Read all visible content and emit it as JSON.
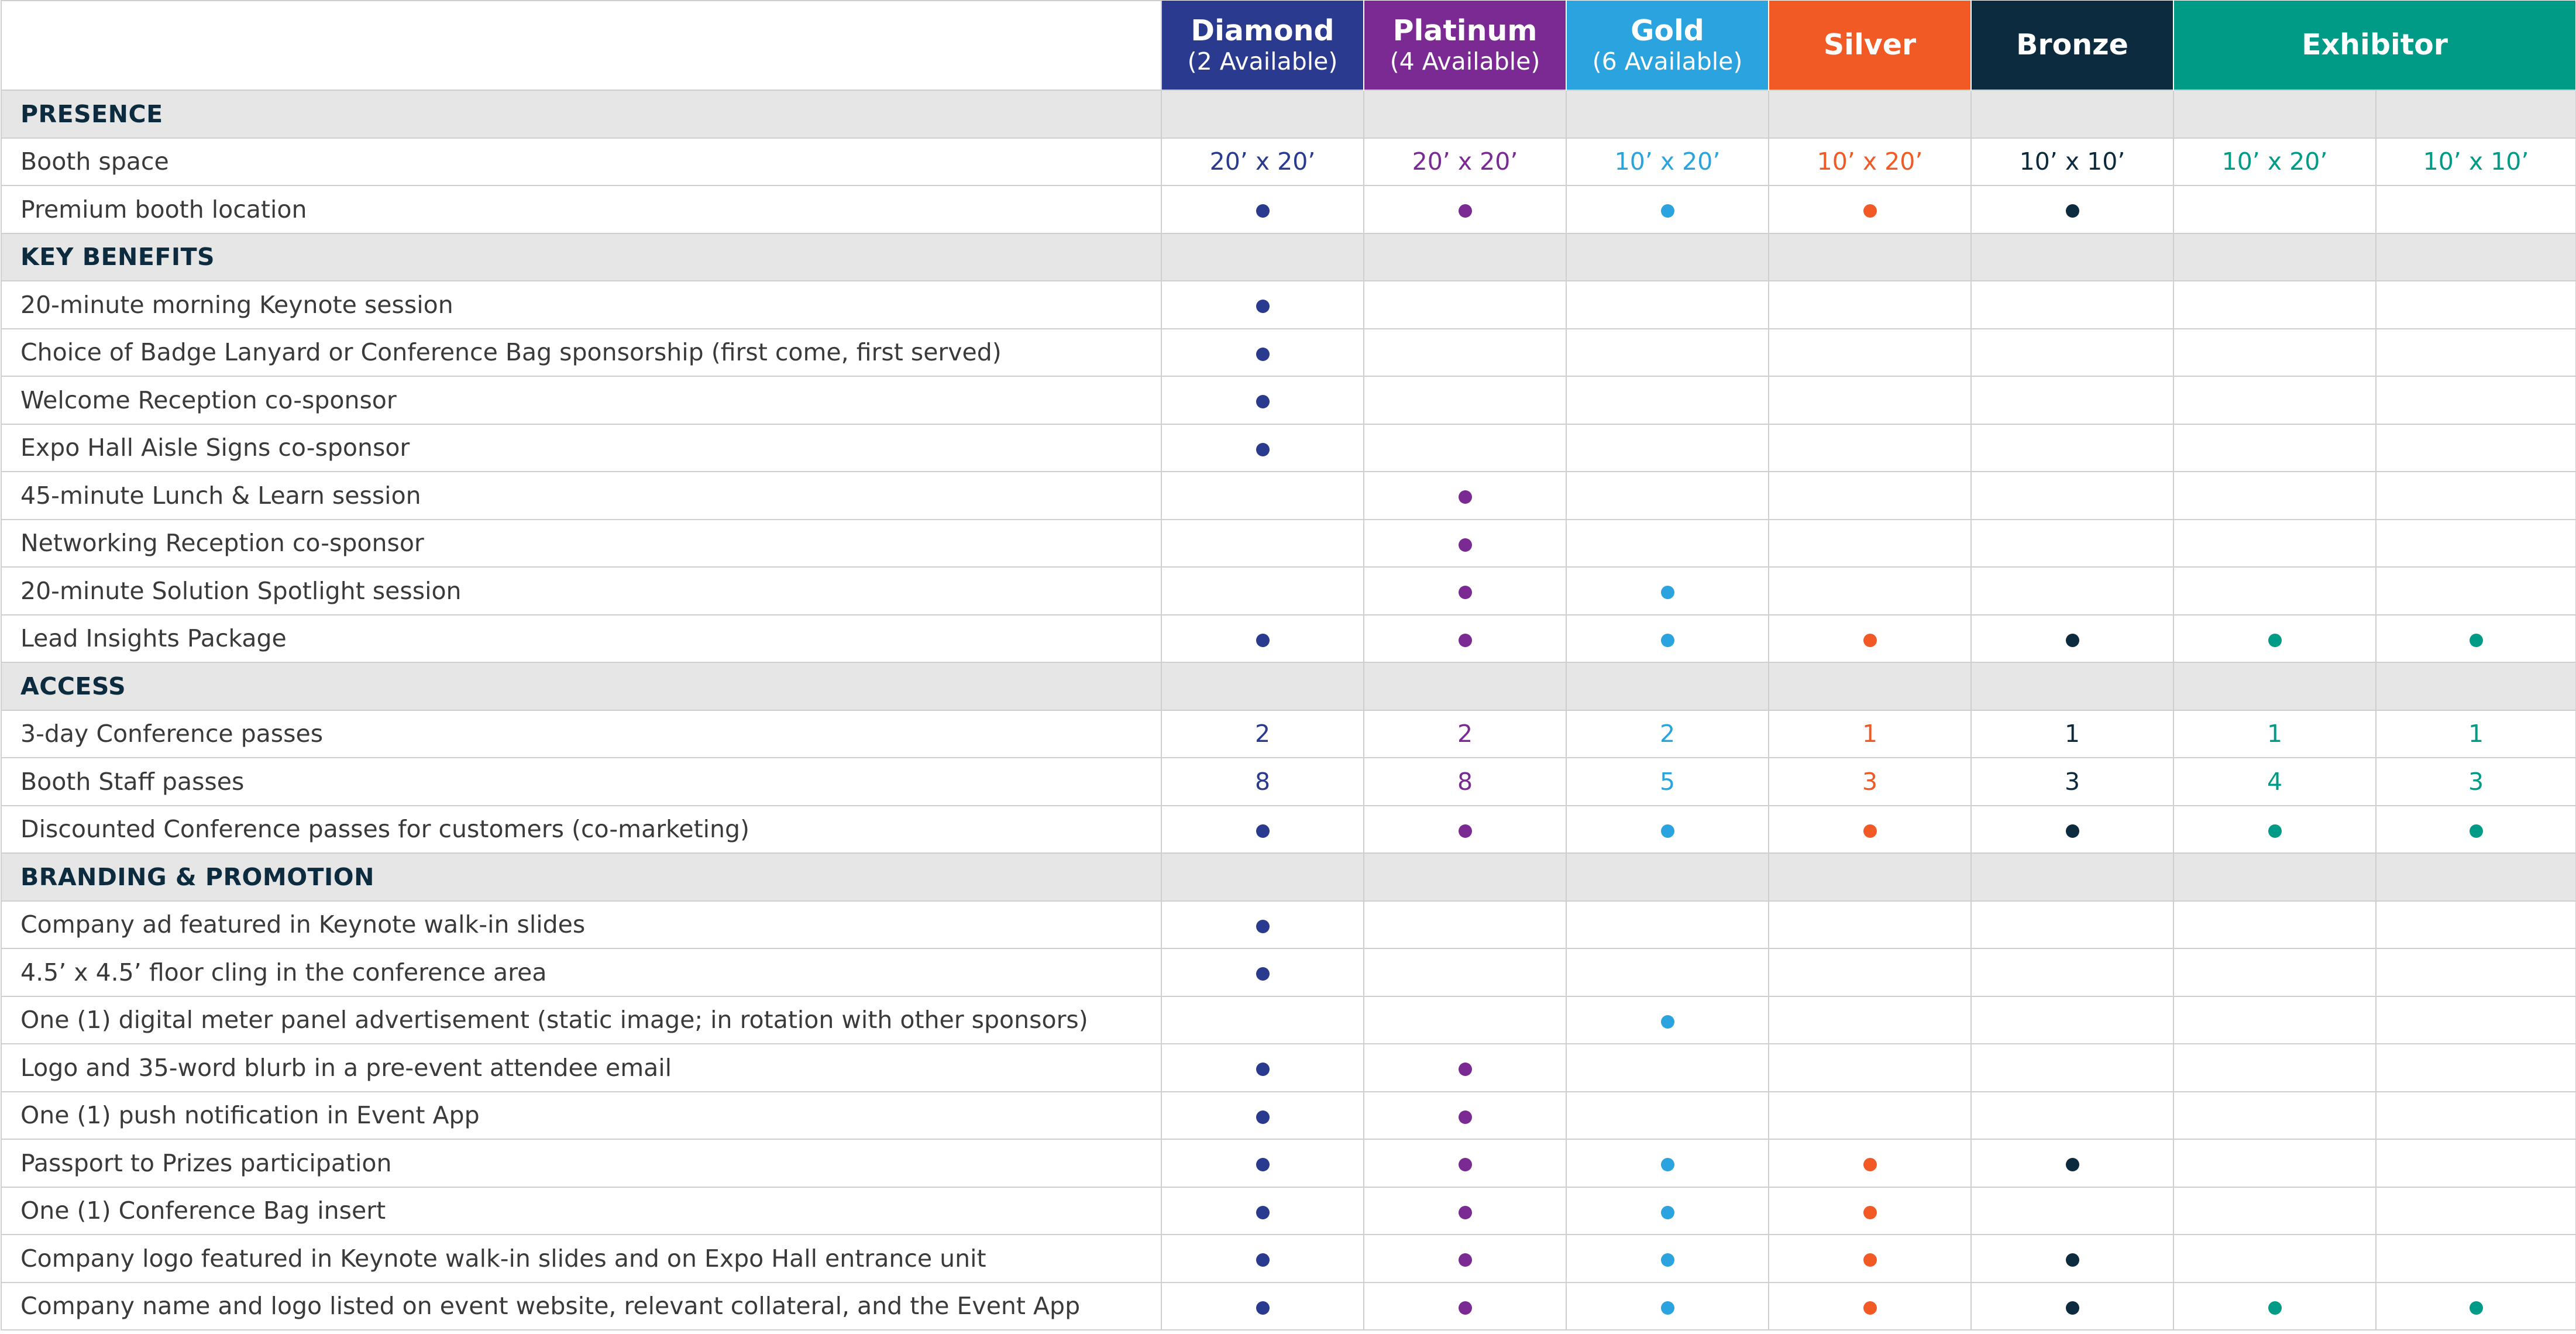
{
  "tiers": [
    {
      "key": "diamond",
      "name": "Diamond",
      "sub": "(2 Available)",
      "color": "#2a3a8f"
    },
    {
      "key": "platinum",
      "name": "Platinum",
      "sub": "(4 Available)",
      "color": "#7b2a93"
    },
    {
      "key": "gold",
      "name": "Gold",
      "sub": "(6 Available)",
      "color": "#2aa3df"
    },
    {
      "key": "silver",
      "name": "Silver",
      "sub": "",
      "color": "#f15a24"
    },
    {
      "key": "bronze",
      "name": "Bronze",
      "sub": "",
      "color": "#0d2b3e"
    },
    {
      "key": "exhibitor",
      "name": "Exhibitor",
      "sub": "",
      "color": "#009b87"
    }
  ],
  "column_colors": [
    "#2a3a8f",
    "#7b2a93",
    "#2aa3df",
    "#f15a24",
    "#0d2b3e",
    "#009b87",
    "#009b87"
  ],
  "colors": {
    "section_bg": "#e6e6e6",
    "grid": "#cfcfcf",
    "feature_text": "#3a3a3a",
    "section_text": "#0d2b3e"
  },
  "rows": [
    {
      "type": "section",
      "label": "PRESENCE"
    },
    {
      "type": "feature",
      "label": "Booth space",
      "cells": [
        "20’ x 20’",
        "20’ x 20’",
        "10’ x 20’",
        "10’ x 20’",
        "10’ x 10’",
        "10’ x 20’",
        "10’ x 10’"
      ]
    },
    {
      "type": "feature",
      "label": "Premium booth location",
      "cells": [
        "dot",
        "dot",
        "dot",
        "dot",
        "dot",
        "",
        ""
      ]
    },
    {
      "type": "section",
      "label": "KEY BENEFITS"
    },
    {
      "type": "feature",
      "label": "20-minute morning Keynote session",
      "cells": [
        "dot",
        "",
        "",
        "",
        "",
        "",
        ""
      ]
    },
    {
      "type": "feature",
      "label": "Choice of Badge Lanyard or Conference Bag sponsorship (first come, first served)",
      "cells": [
        "dot",
        "",
        "",
        "",
        "",
        "",
        ""
      ]
    },
    {
      "type": "feature",
      "label": "Welcome Reception co-sponsor",
      "cells": [
        "dot",
        "",
        "",
        "",
        "",
        "",
        ""
      ]
    },
    {
      "type": "feature",
      "label": "Expo Hall Aisle Signs co-sponsor",
      "cells": [
        "dot",
        "",
        "",
        "",
        "",
        "",
        ""
      ]
    },
    {
      "type": "feature",
      "label": "45-minute Lunch & Learn session",
      "cells": [
        "",
        "dot",
        "",
        "",
        "",
        "",
        ""
      ]
    },
    {
      "type": "feature",
      "label": "Networking Reception co-sponsor",
      "cells": [
        "",
        "dot",
        "",
        "",
        "",
        "",
        ""
      ]
    },
    {
      "type": "feature",
      "label": "20-minute Solution Spotlight session",
      "cells": [
        "",
        "dot",
        "dot",
        "",
        "",
        "",
        ""
      ]
    },
    {
      "type": "feature",
      "label": "Lead Insights Package",
      "cells": [
        "dot",
        "dot",
        "dot",
        "dot",
        "dot",
        "dot",
        "dot"
      ]
    },
    {
      "type": "section",
      "label": "ACCESS"
    },
    {
      "type": "feature",
      "label": "3-day Conference passes",
      "cells": [
        "2",
        "2",
        "2",
        "1",
        "1",
        "1",
        "1"
      ]
    },
    {
      "type": "feature",
      "label": "Booth Staff passes",
      "cells": [
        "8",
        "8",
        "5",
        "3",
        "3",
        "4",
        "3"
      ]
    },
    {
      "type": "feature",
      "label": "Discounted Conference passes for customers (co-marketing)",
      "cells": [
        "dot",
        "dot",
        "dot",
        "dot",
        "dot",
        "dot",
        "dot"
      ]
    },
    {
      "type": "section",
      "label": "BRANDING & PROMOTION"
    },
    {
      "type": "feature",
      "label": "Company ad featured in Keynote walk-in slides",
      "cells": [
        "dot",
        "",
        "",
        "",
        "",
        "",
        ""
      ]
    },
    {
      "type": "feature",
      "label": "4.5’ x 4.5’ floor cling in the conference area",
      "cells": [
        "dot",
        "",
        "",
        "",
        "",
        "",
        ""
      ]
    },
    {
      "type": "feature",
      "label": "One (1) digital meter panel advertisement (static image; in rotation with other sponsors)",
      "cells": [
        "",
        "",
        "dot",
        "",
        "",
        "",
        ""
      ]
    },
    {
      "type": "feature",
      "label": "Logo and 35-word blurb in a pre-event attendee email",
      "cells": [
        "dot",
        "dot",
        "",
        "",
        "",
        "",
        ""
      ]
    },
    {
      "type": "feature",
      "label": "One (1) push notification in Event App",
      "cells": [
        "dot",
        "dot",
        "",
        "",
        "",
        "",
        ""
      ]
    },
    {
      "type": "feature",
      "label": "Passport to Prizes participation",
      "cells": [
        "dot",
        "dot",
        "dot",
        "dot",
        "dot",
        "",
        ""
      ]
    },
    {
      "type": "feature",
      "label": "One (1) Conference Bag insert",
      "cells": [
        "dot",
        "dot",
        "dot",
        "dot",
        "",
        "",
        ""
      ]
    },
    {
      "type": "feature",
      "label": "Company logo featured in Keynote walk-in slides and on Expo Hall entrance unit",
      "cells": [
        "dot",
        "dot",
        "dot",
        "dot",
        "dot",
        "",
        ""
      ]
    },
    {
      "type": "feature",
      "label": "Company name and logo listed on event website, relevant collateral, and the Event App",
      "cells": [
        "dot",
        "dot",
        "dot",
        "dot",
        "dot",
        "dot",
        "dot"
      ]
    }
  ]
}
